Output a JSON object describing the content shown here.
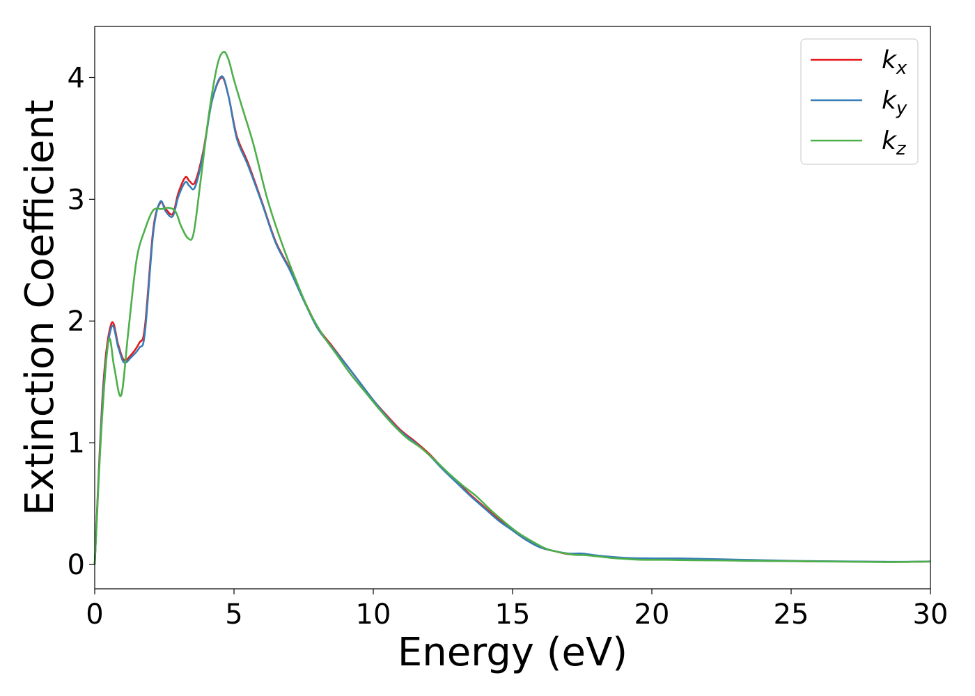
{
  "chart_data": {
    "type": "line",
    "title": "",
    "xlabel": "Energy (eV)",
    "ylabel": "Extinction Coefficient",
    "xlim": [
      0,
      30
    ],
    "ylim": [
      -0.2,
      4.42
    ],
    "xticks": [
      0,
      5,
      10,
      15,
      20,
      25,
      30
    ],
    "yticks": [
      0,
      1,
      2,
      3,
      4
    ],
    "grid": false,
    "legend_position": "top-right",
    "series": [
      {
        "name": "k_x",
        "base": "k",
        "subscript": "x",
        "color": "#e41a1c",
        "x": [
          0,
          0.3,
          0.6,
          0.85,
          1.05,
          1.3,
          1.6,
          1.8,
          2.1,
          2.35,
          2.55,
          2.8,
          3.0,
          3.25,
          3.4,
          3.6,
          3.9,
          4.2,
          4.55,
          4.8,
          5.1,
          5.5,
          6.0,
          6.5,
          7.0,
          7.5,
          8.0,
          8.5,
          9.0,
          9.5,
          10,
          10.5,
          11,
          11.5,
          12,
          12.5,
          13,
          13.5,
          14,
          14.5,
          15,
          15.5,
          16,
          16.5,
          17,
          17.5,
          18,
          19,
          20,
          21,
          22,
          23,
          24,
          25,
          26,
          27,
          28,
          29,
          30
        ],
        "y": [
          0,
          1.45,
          1.98,
          1.8,
          1.68,
          1.72,
          1.82,
          1.95,
          2.75,
          2.97,
          2.92,
          2.88,
          3.05,
          3.18,
          3.15,
          3.14,
          3.4,
          3.8,
          4.0,
          3.85,
          3.52,
          3.3,
          2.98,
          2.65,
          2.43,
          2.18,
          1.95,
          1.8,
          1.65,
          1.5,
          1.35,
          1.22,
          1.1,
          1.01,
          0.91,
          0.79,
          0.68,
          0.57,
          0.47,
          0.37,
          0.28,
          0.2,
          0.14,
          0.11,
          0.085,
          0.085,
          0.07,
          0.05,
          0.045,
          0.045,
          0.04,
          0.035,
          0.03,
          0.028,
          0.025,
          0.024,
          0.022,
          0.021,
          0.025
        ]
      },
      {
        "name": "k_y",
        "base": "k",
        "subscript": "y",
        "color": "#377eb8",
        "x": [
          0,
          0.3,
          0.6,
          0.85,
          1.05,
          1.3,
          1.6,
          1.8,
          2.1,
          2.35,
          2.55,
          2.8,
          3.0,
          3.25,
          3.4,
          3.6,
          3.9,
          4.2,
          4.55,
          4.8,
          5.1,
          5.5,
          6.0,
          6.5,
          7.0,
          7.5,
          8.0,
          8.5,
          9.0,
          9.5,
          10,
          10.5,
          11,
          11.5,
          12,
          12.5,
          13,
          13.5,
          14,
          14.5,
          15,
          15.5,
          16,
          16.5,
          17,
          17.5,
          18,
          19,
          20,
          21,
          22,
          23,
          24,
          25,
          26,
          27,
          28,
          29,
          30
        ],
        "y": [
          0,
          1.4,
          1.95,
          1.78,
          1.66,
          1.7,
          1.78,
          1.9,
          2.72,
          2.98,
          2.9,
          2.86,
          3.02,
          3.14,
          3.11,
          3.1,
          3.38,
          3.8,
          4.01,
          3.85,
          3.5,
          3.28,
          2.97,
          2.64,
          2.42,
          2.17,
          1.94,
          1.79,
          1.65,
          1.5,
          1.35,
          1.21,
          1.09,
          1.0,
          0.9,
          0.78,
          0.67,
          0.56,
          0.46,
          0.36,
          0.28,
          0.2,
          0.14,
          0.11,
          0.09,
          0.09,
          0.075,
          0.055,
          0.05,
          0.05,
          0.045,
          0.04,
          0.035,
          0.03,
          0.027,
          0.025,
          0.023,
          0.022,
          0.025
        ]
      },
      {
        "name": "k_z",
        "base": "k",
        "subscript": "z",
        "color": "#4daf4a",
        "x": [
          0,
          0.25,
          0.5,
          0.7,
          0.95,
          1.2,
          1.5,
          1.8,
          2.1,
          2.4,
          2.65,
          2.9,
          3.1,
          3.35,
          3.55,
          3.8,
          4.1,
          4.4,
          4.62,
          4.8,
          5.0,
          5.3,
          5.7,
          6.2,
          6.7,
          7.2,
          7.7,
          8.2,
          8.7,
          9.2,
          9.7,
          10.2,
          10.7,
          11.2,
          11.7,
          12.2,
          12.7,
          13.2,
          13.7,
          14.2,
          14.7,
          15.2,
          15.7,
          16.2,
          16.7,
          17.2,
          17.7,
          18.5,
          19.5,
          20.5,
          21.5,
          22.5,
          23.5,
          24.5,
          25.5,
          26.5,
          27.5,
          28.5,
          30
        ],
        "y": [
          0,
          1.15,
          1.84,
          1.62,
          1.39,
          1.9,
          2.5,
          2.75,
          2.91,
          2.92,
          2.93,
          2.9,
          2.78,
          2.68,
          2.72,
          3.15,
          3.7,
          4.1,
          4.21,
          4.15,
          3.98,
          3.75,
          3.45,
          3.0,
          2.65,
          2.35,
          2.08,
          1.88,
          1.72,
          1.56,
          1.42,
          1.28,
          1.15,
          1.04,
          0.96,
          0.86,
          0.75,
          0.65,
          0.56,
          0.45,
          0.35,
          0.26,
          0.19,
          0.13,
          0.1,
          0.08,
          0.075,
          0.055,
          0.04,
          0.038,
          0.035,
          0.033,
          0.03,
          0.028,
          0.026,
          0.024,
          0.022,
          0.02,
          0.024
        ]
      }
    ]
  }
}
